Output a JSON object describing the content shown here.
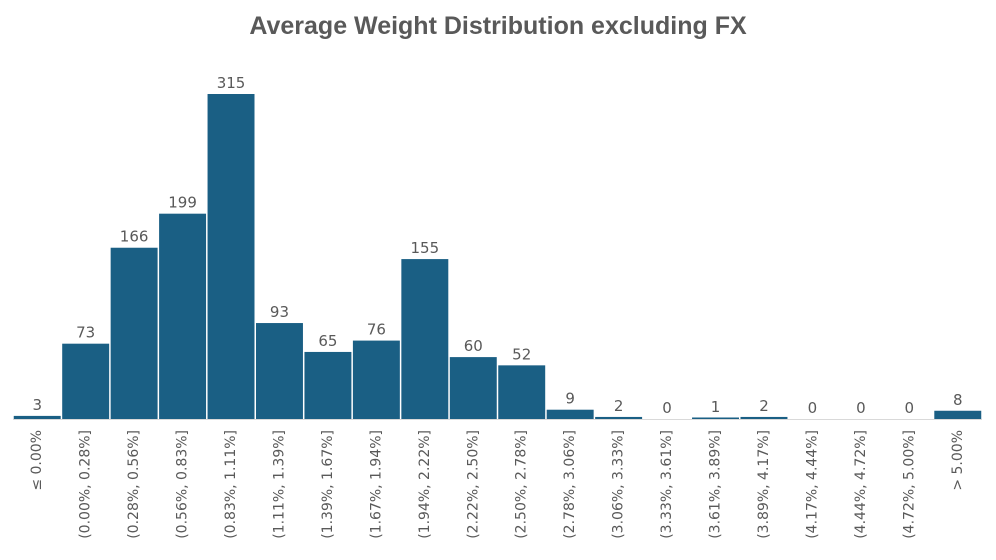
{
  "chart_data": {
    "type": "bar",
    "title": "Average Weight Distribution excluding FX",
    "xlabel": "",
    "ylabel": "",
    "ylim": [
      0,
      315
    ],
    "grid": false,
    "legend": "none",
    "bar_color": "#1a5f84",
    "axis_color": "#d9d9d9",
    "text_color": "#595959",
    "categories": [
      "≤ 0.00%",
      "(0.00%, 0.28%]",
      "(0.28%, 0.56%]",
      "(0.56%, 0.83%]",
      "(0.83%, 1.11%]",
      "(1.11%, 1.39%]",
      "(1.39%, 1.67%]",
      "(1.67%, 1.94%]",
      "(1.94%, 2.22%]",
      "(2.22%, 2.50%]",
      "(2.50%, 2.78%]",
      "(2.78%, 3.06%]",
      "(3.06%, 3.33%]",
      "(3.33%, 3.61%]",
      "(3.61%, 3.89%]",
      "(3.89%, 4.17%]",
      "(4.17%, 4.44%]",
      "(4.44%, 4.72%]",
      "(4.72%, 5.00%]",
      "> 5.00%"
    ],
    "values": [
      3,
      73,
      166,
      199,
      315,
      93,
      65,
      76,
      155,
      60,
      52,
      9,
      2,
      0,
      1,
      2,
      0,
      0,
      0,
      8
    ]
  }
}
